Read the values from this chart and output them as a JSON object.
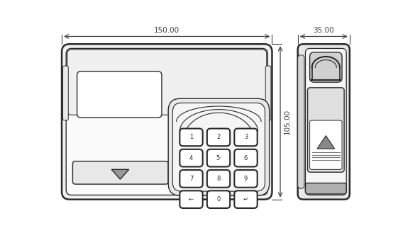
{
  "bg_color": "#ffffff",
  "line_color": "#2a2a2a",
  "line_width": 1.0,
  "thick_line": 1.8,
  "dim_color": "#444444",
  "dim_fontsize": 7.5,
  "key_fontsize": 6.0,
  "fig_width": 5.92,
  "fig_height": 3.39,
  "dim_150": "150.00",
  "dim_35": "35.00",
  "dim_105": "105.00",
  "keys": [
    [
      "1",
      "2",
      "3"
    ],
    [
      "4",
      "5·",
      "6"
    ],
    [
      "7",
      "8",
      "9"
    ],
    [
      "←",
      "0",
      "↵"
    ]
  ]
}
